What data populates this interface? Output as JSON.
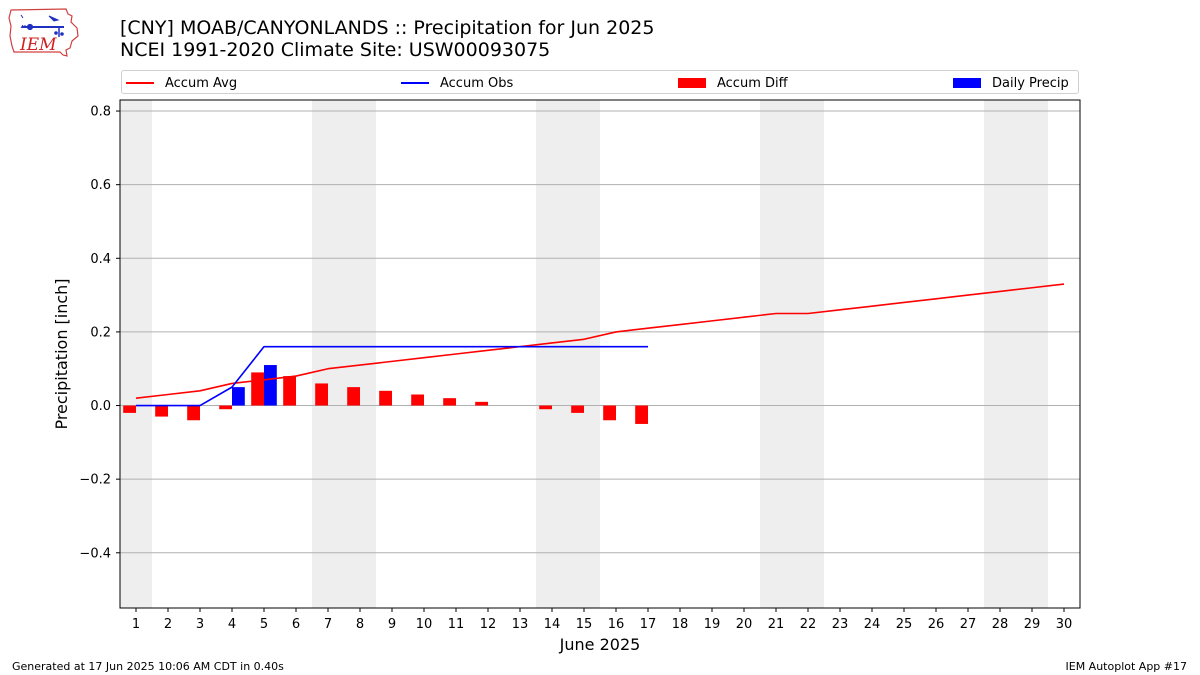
{
  "logo": {
    "text": "IEM",
    "icon": "iem-iowa-logo"
  },
  "title_line1": "[CNY] MOAB/CANYONLANDS :: Precipitation for Jun 2025",
  "title_line2": "NCEI 1991-2020 Climate Site: USW00093075",
  "legend": {
    "accum_avg": "Accum Avg",
    "accum_obs": "Accum Obs",
    "accum_diff": "Accum Diff",
    "daily_precip": "Daily Precip"
  },
  "colors": {
    "accum_avg": "#ff0000",
    "accum_obs": "#0000ff",
    "accum_diff": "#ff0000",
    "daily_precip": "#0000ff",
    "weekend_shade": "#eeeeee",
    "grid": "#b0b0b0"
  },
  "footer": {
    "generated": "Generated at 17 Jun 2025 10:06 AM CDT in 0.40s",
    "app": "IEM Autoplot App #17"
  },
  "chart_data": {
    "type": "bar",
    "xlabel": "June 2025",
    "ylabel": "Precipitation [inch]",
    "xlim": [
      0.5,
      30.5
    ],
    "ylim": [
      -0.55,
      0.83
    ],
    "yticks": [
      -0.4,
      -0.2,
      0.0,
      0.2,
      0.4,
      0.6,
      0.8
    ],
    "ytick_labels": [
      "−0.4",
      "−0.2",
      "0.0",
      "0.2",
      "0.4",
      "0.6",
      "0.8"
    ],
    "categories": [
      "1",
      "2",
      "3",
      "4",
      "5",
      "6",
      "7",
      "8",
      "9",
      "10",
      "11",
      "12",
      "13",
      "14",
      "15",
      "16",
      "17",
      "18",
      "19",
      "20",
      "21",
      "22",
      "23",
      "24",
      "25",
      "26",
      "27",
      "28",
      "29",
      "30"
    ],
    "shaded_days": [
      [
        1
      ],
      [
        7,
        8
      ],
      [
        14,
        15
      ],
      [
        21,
        22
      ],
      [
        28,
        29
      ]
    ],
    "grid": "horizontal",
    "legend_position": "top",
    "series": [
      {
        "name": "Accum Avg",
        "type": "line",
        "x": [
          1,
          2,
          3,
          4,
          5,
          6,
          7,
          8,
          9,
          10,
          11,
          12,
          13,
          14,
          15,
          16,
          17,
          18,
          19,
          20,
          21,
          22,
          23,
          24,
          25,
          26,
          27,
          28,
          29,
          30
        ],
        "values": [
          0.02,
          0.03,
          0.04,
          0.06,
          0.07,
          0.08,
          0.1,
          0.11,
          0.12,
          0.13,
          0.14,
          0.15,
          0.16,
          0.17,
          0.18,
          0.2,
          0.21,
          0.22,
          0.23,
          0.24,
          0.25,
          0.25,
          0.26,
          0.27,
          0.28,
          0.29,
          0.3,
          0.31,
          0.32,
          0.33
        ]
      },
      {
        "name": "Accum Obs",
        "type": "line",
        "x": [
          1,
          2,
          3,
          4,
          5,
          6,
          7,
          8,
          9,
          10,
          11,
          12,
          13,
          14,
          15,
          16,
          17
        ],
        "values": [
          0.0,
          0.0,
          0.0,
          0.05,
          0.16,
          0.16,
          0.16,
          0.16,
          0.16,
          0.16,
          0.16,
          0.16,
          0.16,
          0.16,
          0.16,
          0.16,
          0.16
        ]
      },
      {
        "name": "Accum Diff",
        "type": "bar",
        "x": [
          1,
          2,
          3,
          4,
          5,
          6,
          7,
          8,
          9,
          10,
          11,
          12,
          13,
          14,
          15,
          16,
          17
        ],
        "values": [
          -0.02,
          -0.03,
          -0.04,
          -0.01,
          0.09,
          0.08,
          0.06,
          0.05,
          0.04,
          0.03,
          0.02,
          0.01,
          0.0,
          -0.01,
          -0.02,
          -0.04,
          -0.05
        ]
      },
      {
        "name": "Daily Precip",
        "type": "bar",
        "x": [
          4,
          5
        ],
        "values": [
          0.05,
          0.11
        ]
      }
    ]
  }
}
